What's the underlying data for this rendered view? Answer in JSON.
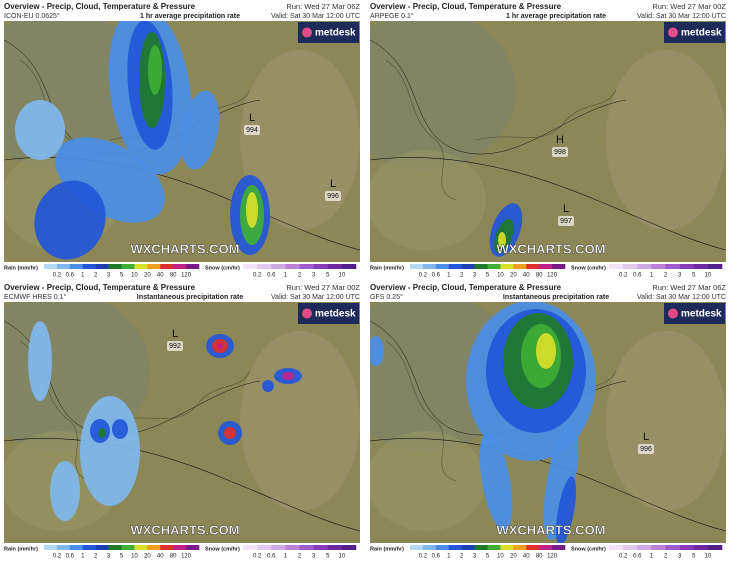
{
  "panels": [
    {
      "title": "Overview - Precip, Cloud, Temperature & Pressure",
      "run": "Run: Wed 27 Mar 06Z",
      "model": "ICON-EU 0.0625°",
      "subtitle": "1 hr average precipitation rate",
      "valid": "Valid: Sat 30 Mar 12:00 UTC",
      "logo": "metdesk",
      "watermark": "WXCHARTS.COM",
      "pressure": [
        {
          "symbol": "L",
          "value": 994
        },
        {
          "symbol": "L",
          "value": 996
        }
      ],
      "rain_label": "Rain (mm/hr)",
      "rain_ticks": [
        0.2,
        0.6,
        1,
        2,
        3,
        5,
        10,
        20,
        40,
        80,
        120
      ],
      "snow_label": "Snow (cm/hr)",
      "snow_ticks": [
        0.2,
        0.6,
        1,
        2,
        3,
        5,
        10
      ]
    },
    {
      "title": "Overview - Precip, Cloud, Temperature & Pressure",
      "run": "Run: Wed 27 Mar 00Z",
      "model": "ARPEGE 0.1°",
      "subtitle": "1 hr average precipitation rate",
      "valid": "Valid: Sat 30 Mar 12:00 UTC",
      "logo": "metdesk",
      "watermark": "WXCHARTS.COM",
      "pressure": [
        {
          "symbol": "H",
          "value": 998
        },
        {
          "symbol": "L",
          "value": 997
        }
      ],
      "rain_label": "Rain (mm/hr)",
      "rain_ticks": [
        0.2,
        0.6,
        1,
        2,
        3,
        5,
        10,
        20,
        40,
        80,
        120
      ],
      "snow_label": "Snow (cm/hr)",
      "snow_ticks": [
        0.2,
        0.6,
        1,
        2,
        3,
        5,
        10
      ]
    },
    {
      "title": "Overview - Precip, Cloud, Temperature & Pressure",
      "run": "Run: Wed 27 Mar 00Z",
      "model": "ECMWF HRES 0.1°",
      "subtitle": "Instantaneous precipitation rate",
      "valid": "Valid: Sat 30 Mar 12:00 UTC",
      "logo": "metdesk",
      "watermark": "WXCHARTS.COM",
      "pressure": [
        {
          "symbol": "L",
          "value": 992
        }
      ],
      "rain_label": "Rain (mm/hr)",
      "rain_ticks": [
        0.2,
        0.6,
        1,
        2,
        3,
        5,
        10,
        20,
        40,
        80,
        120
      ],
      "snow_label": "Snow (cm/hr)",
      "snow_ticks": [
        0.2,
        0.6,
        1,
        2,
        3,
        5,
        10
      ]
    },
    {
      "title": "Overview - Precip, Cloud, Temperature & Pressure",
      "run": "Run: Wed 27 Mar 06Z",
      "model": "GFS 0.25°",
      "subtitle": "Instantaneous precipitation rate",
      "valid": "Valid: Sat 30 Mar 12:00 UTC",
      "logo": "metdesk",
      "watermark": "WXCHARTS.COM",
      "pressure": [
        {
          "symbol": "L",
          "value": 996
        }
      ],
      "rain_label": "Rain (mm/hr)",
      "rain_ticks": [
        0.2,
        0.6,
        1,
        2,
        3,
        5,
        10,
        20,
        40,
        80,
        120
      ],
      "snow_label": "Snow (cm/hr)",
      "snow_ticks": [
        0.2,
        0.6,
        1,
        2,
        3,
        5,
        10
      ]
    }
  ]
}
